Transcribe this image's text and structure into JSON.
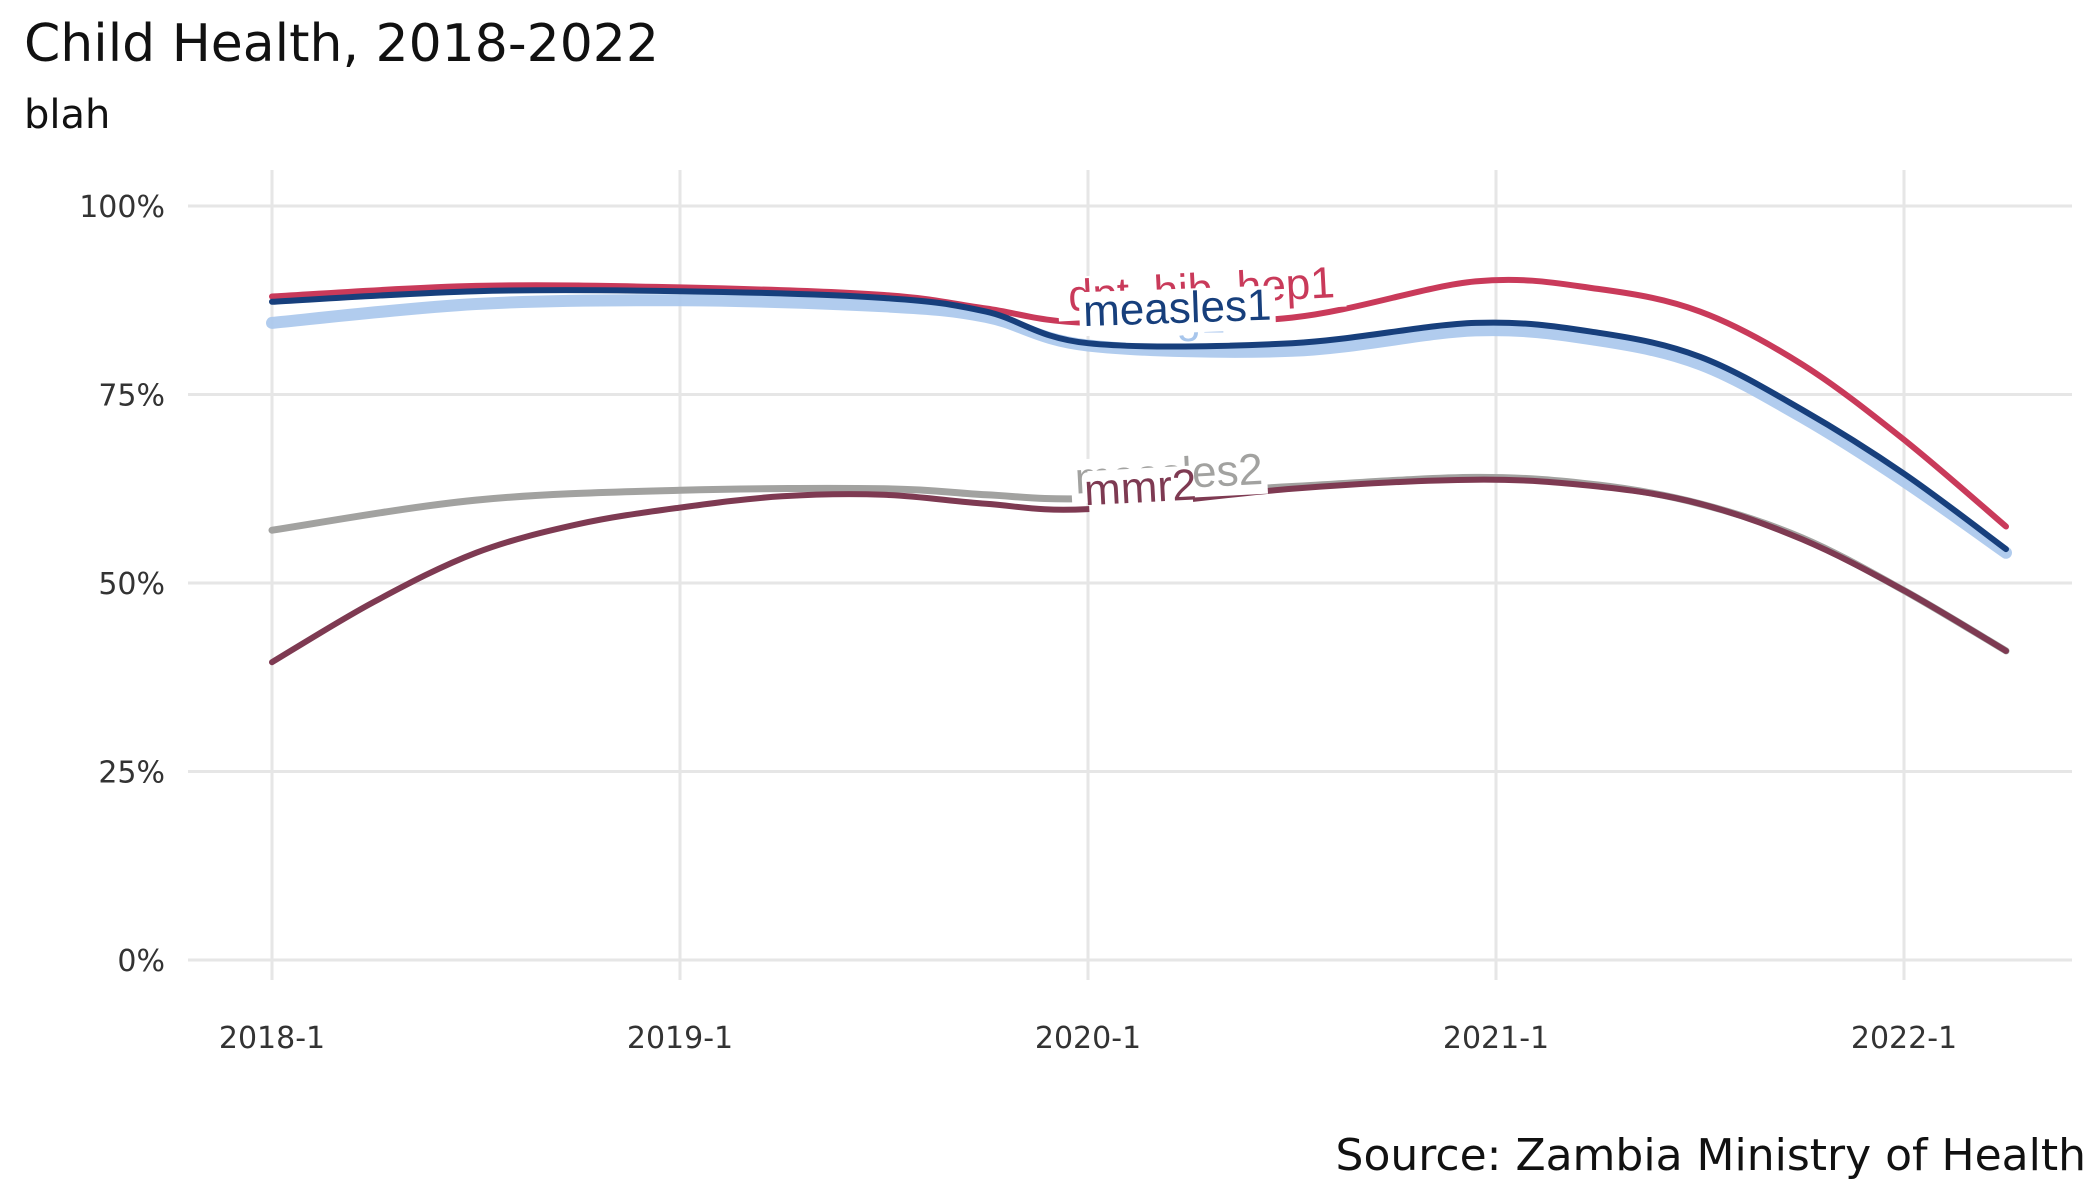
{
  "chart_data": {
    "type": "line",
    "title": "Child Health, 2018-2022",
    "subtitle": "blah",
    "caption": "Source: Zambia Ministry of Health",
    "xlabel": "",
    "ylabel": "",
    "x_ticks": [
      "2018-1",
      "2019-1",
      "2020-1",
      "2021-1",
      "2022-1"
    ],
    "y_ticks": [
      "0%",
      "25%",
      "50%",
      "75%",
      "100%"
    ],
    "xlim": [
      2017.8,
      2022.42
    ],
    "ylim": [
      0,
      1
    ],
    "grid": true,
    "legend": "none (direct labels)",
    "series": [
      {
        "name": "bcg1",
        "color": "#a8c6ec",
        "x": [
          2018.0,
          2018.5,
          2019.0,
          2019.5,
          2019.75,
          2020.0,
          2020.5,
          2020.95,
          2021.25,
          2021.5,
          2021.75,
          2022.0,
          2022.25
        ],
        "y": [
          0.845,
          0.87,
          0.875,
          0.867,
          0.853,
          0.815,
          0.808,
          0.835,
          0.822,
          0.79,
          0.72,
          0.635,
          0.54
        ]
      },
      {
        "name": "dpt_hib_hep1",
        "color": "#c93a5a",
        "x": [
          2018.0,
          2018.5,
          2019.0,
          2019.5,
          2019.75,
          2020.0,
          2020.5,
          2020.95,
          2021.25,
          2021.5,
          2021.75,
          2022.0,
          2022.25
        ],
        "y": [
          0.88,
          0.894,
          0.892,
          0.882,
          0.864,
          0.845,
          0.852,
          0.9,
          0.89,
          0.86,
          0.79,
          0.69,
          0.575
        ]
      },
      {
        "name": "measles1",
        "color": "#173f7c",
        "x": [
          2018.0,
          2018.5,
          2019.0,
          2019.5,
          2019.75,
          2020.0,
          2020.5,
          2020.95,
          2021.25,
          2021.5,
          2021.75,
          2022.0,
          2022.25
        ],
        "y": [
          0.873,
          0.887,
          0.887,
          0.878,
          0.86,
          0.818,
          0.818,
          0.845,
          0.832,
          0.8,
          0.73,
          0.645,
          0.545
        ]
      },
      {
        "name": "measles2",
        "color": "#a2a2a0",
        "x": [
          2018.0,
          2018.5,
          2019.0,
          2019.5,
          2019.75,
          2020.0,
          2020.5,
          2020.95,
          2021.25,
          2021.5,
          2021.75,
          2022.0,
          2022.25
        ],
        "y": [
          0.57,
          0.61,
          0.623,
          0.625,
          0.617,
          0.612,
          0.628,
          0.64,
          0.63,
          0.605,
          0.56,
          0.49,
          0.41
        ]
      },
      {
        "name": "mmr2",
        "color": "#7e3a52",
        "x": [
          2018.0,
          2018.25,
          2018.5,
          2018.75,
          2019.0,
          2019.25,
          2019.5,
          2019.75,
          2020.0,
          2020.5,
          2020.95,
          2021.25,
          2021.5,
          2021.75,
          2022.0,
          2022.25
        ],
        "y": [
          0.395,
          0.475,
          0.54,
          0.578,
          0.6,
          0.615,
          0.617,
          0.605,
          0.598,
          0.625,
          0.637,
          0.628,
          0.605,
          0.558,
          0.49,
          0.41
        ]
      }
    ],
    "labels": [
      {
        "series": "dpt_hib_hep1",
        "text": "dpt_hib_hep1",
        "x": 2020.28,
        "y": 0.87,
        "angle": -3
      },
      {
        "series": "bcg1",
        "text": "bcg1",
        "x": 2020.22,
        "y": 0.832,
        "angle": 0
      },
      {
        "series": "measles1",
        "text": "measles1",
        "x": 2020.22,
        "y": 0.845,
        "angle": -2
      },
      {
        "series": "measles2",
        "text": "measles2",
        "x": 2020.2,
        "y": 0.625,
        "angle": -3
      },
      {
        "series": "mmr2",
        "text": "mmr2",
        "x": 2020.13,
        "y": 0.607,
        "angle": -3
      }
    ]
  }
}
